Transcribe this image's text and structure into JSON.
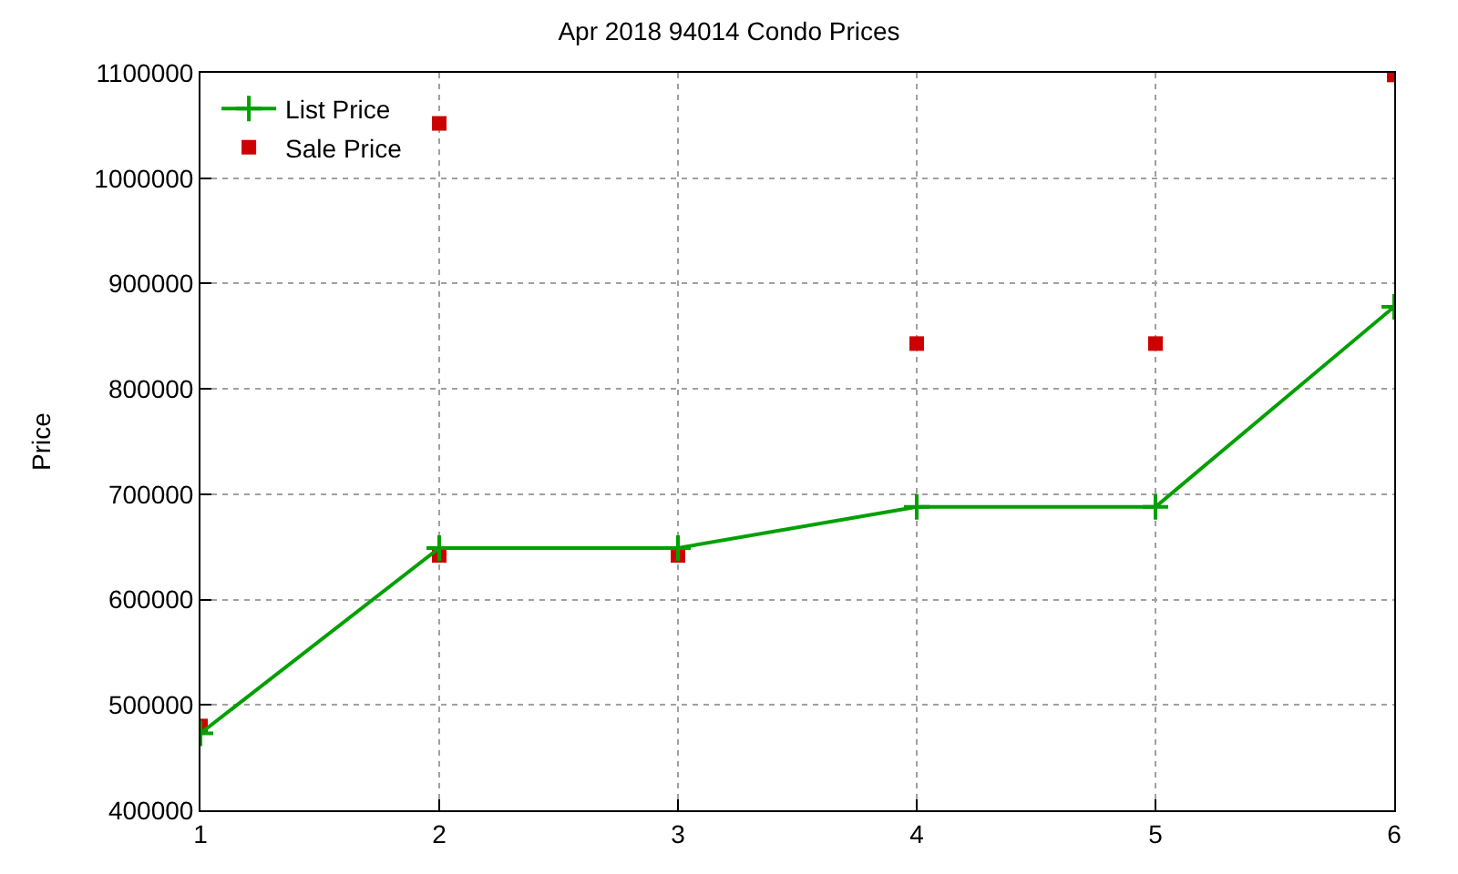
{
  "chart_data": {
    "type": "line",
    "title": "Apr 2018 94014 Condo Prices",
    "ylabel": "Price",
    "x": [
      1,
      2,
      3,
      4,
      5,
      6
    ],
    "series": [
      {
        "name": "List Price",
        "color": "#00a000",
        "values": [
          473000,
          649000,
          649000,
          688000,
          688000,
          878000
        ],
        "marker": "cross",
        "line_style": "solid"
      },
      {
        "name": "Sale Price",
        "type": "scatter",
        "color": "#cc0000",
        "x": [
          1,
          2,
          2,
          3,
          4,
          5,
          6
        ],
        "values": [
          480000,
          1052000,
          642000,
          642000,
          843000,
          843000,
          1098000
        ],
        "marker": "square"
      }
    ],
    "xlim": [
      1,
      6
    ],
    "xticks": [
      1,
      2,
      3,
      4,
      5,
      6
    ],
    "ylim": [
      400000,
      1100000
    ],
    "yticks": [
      400000,
      500000,
      600000,
      700000,
      800000,
      900000,
      1000000,
      1100000
    ],
    "grid": true,
    "legend": "top left"
  }
}
